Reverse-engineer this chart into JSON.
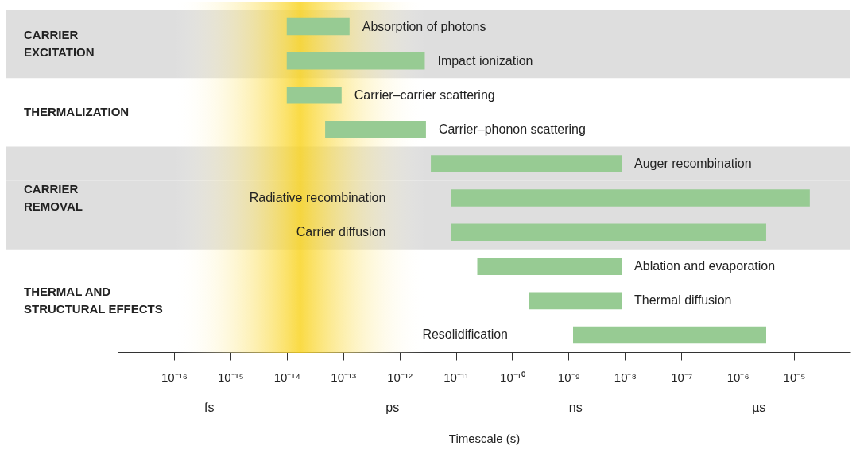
{
  "chart_data": {
    "type": "bar",
    "orientation": "horizontal",
    "log": "x",
    "xlabel": "Timescale (s)",
    "categories": [
      "Absorption of photons",
      "Impact ionization",
      "Carrier–carrier scattering",
      "Carrier–phonon scattering",
      "Auger recombination",
      "Radiative recombination",
      "Carrier diffusion",
      "Ablation and evaporation",
      "Thermal diffusion",
      "Resolidification"
    ],
    "base": [
      1e-14,
      1e-14,
      1e-14,
      4.8e-14,
      3.6e-12,
      8.2e-12,
      8.2e-12,
      2.4e-11,
      2e-10,
      1.2e-09
    ],
    "values": [
      1.2e-13,
      2.8e-12,
      8.4e-14,
      2.9e-12,
      8.7e-09,
      1.9e-05,
      3.2e-06,
      8.7e-09,
      8.5e-09,
      3.2e-06
    ],
    "color": "#97cb93",
    "xlim": [
      1e-17,
      0.0001
    ],
    "xticks": [
      {
        "value": 1e-16,
        "label": "10⁻¹⁶"
      },
      {
        "value": 1e-15,
        "label": "10⁻¹⁵"
      },
      {
        "value": 1e-14,
        "label": "10⁻¹⁴"
      },
      {
        "value": 1e-13,
        "label": "10⁻¹³"
      },
      {
        "value": 1e-12,
        "label": "10⁻¹²"
      },
      {
        "value": 1e-11,
        "label": "10⁻¹¹"
      },
      {
        "value": 1e-10,
        "label": "10⁻¹⁰"
      },
      {
        "value": 1e-09,
        "label": "10⁻⁹"
      },
      {
        "value": 1e-08,
        "label": "10⁻⁸"
      },
      {
        "value": 1e-07,
        "label": "10⁻⁷"
      },
      {
        "value": 1e-06,
        "label": "10⁻⁶"
      },
      {
        "value": 1e-05,
        "label": "10⁻⁵"
      }
    ],
    "bands": [
      {
        "axis": "y",
        "from": "Absorption of photons",
        "to": "Impact ionization",
        "label": "CARRIER\nEXCITATION",
        "color": "#dedede"
      },
      {
        "axis": "y",
        "from": "Auger recombination",
        "to": "Carrier diffusion",
        "label": "CARRIER\nREMOVAL",
        "color": "#dedede"
      },
      {
        "axis": "x",
        "from": 1e-16,
        "to": 3e-12,
        "color": "#f9d423"
      }
    ],
    "annotations": [
      "THERMALIZATION",
      "THERMAL AND\nSTRUCTURAL EFFECTS",
      "fs",
      "ps",
      "ns",
      "µs"
    ]
  }
}
